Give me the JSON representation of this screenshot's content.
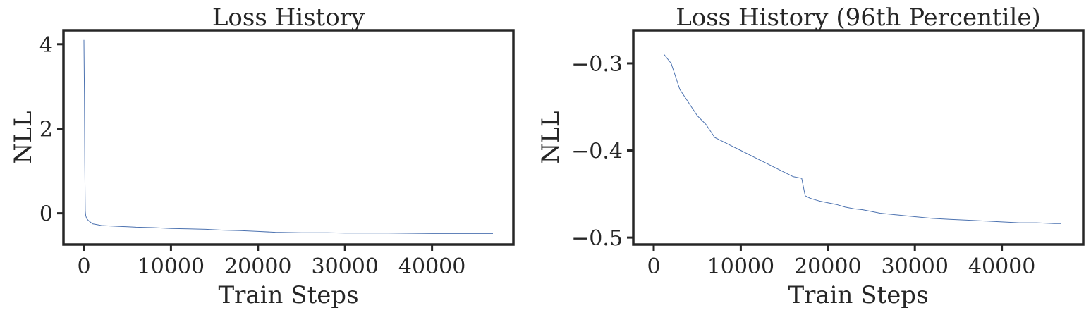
{
  "colors": {
    "series": "#4c72b0",
    "axes": "#262626"
  },
  "chart_data": [
    {
      "type": "line",
      "title": "Loss History",
      "xlabel": "Train Steps",
      "ylabel": "NLL",
      "xlim": [
        -2350,
        49350
      ],
      "ylim": [
        -0.74,
        4.33
      ],
      "xticks": [
        0,
        10000,
        20000,
        30000,
        40000
      ],
      "xtick_labels": [
        "0",
        "10000",
        "20000",
        "30000",
        "40000"
      ],
      "yticks": [
        0,
        2,
        4
      ],
      "ytick_labels": [
        "0",
        "2",
        "4"
      ],
      "grid": false,
      "series": [
        {
          "x": [
            0,
            20,
            60,
            100,
            150,
            200,
            300,
            500,
            800,
            1000,
            1500,
            2000,
            3000,
            4000,
            5000,
            6000,
            8000,
            10000,
            12000,
            14000,
            16000,
            18000,
            20000,
            22000,
            25000,
            28000,
            30000,
            35000,
            40000,
            44000,
            47000
          ],
          "y": [
            4.1,
            3.7,
            2.8,
            1.2,
            0.05,
            -0.05,
            -0.12,
            -0.17,
            -0.22,
            -0.25,
            -0.27,
            -0.29,
            -0.3,
            -0.31,
            -0.32,
            -0.33,
            -0.34,
            -0.36,
            -0.37,
            -0.38,
            -0.4,
            -0.41,
            -0.43,
            -0.45,
            -0.46,
            -0.46,
            -0.47,
            -0.47,
            -0.48,
            -0.48,
            -0.48
          ]
        }
      ]
    },
    {
      "type": "line",
      "title": "Loss History (96th Percentile)",
      "xlabel": "Train Steps",
      "ylabel": "NLL",
      "xlim": [
        -2350,
        49350
      ],
      "ylim": [
        -0.508,
        -0.262
      ],
      "xticks": [
        0,
        10000,
        20000,
        30000,
        40000
      ],
      "xtick_labels": [
        "0",
        "10000",
        "20000",
        "30000",
        "40000"
      ],
      "yticks": [
        -0.3,
        -0.4,
        -0.5
      ],
      "ytick_labels": [
        "−0.3",
        "−0.4",
        "−0.5"
      ],
      "grid": false,
      "series": [
        {
          "x": [
            1200,
            2000,
            3000,
            4000,
            5000,
            6000,
            7000,
            8000,
            9000,
            10000,
            11000,
            12000,
            13000,
            14000,
            15000,
            16000,
            17000,
            17400,
            18000,
            19000,
            20000,
            21000,
            22000,
            23000,
            24000,
            25000,
            26000,
            27000,
            28000,
            30000,
            32000,
            34000,
            36000,
            38000,
            40000,
            42000,
            44000,
            46000,
            46800
          ],
          "y": [
            -0.29,
            -0.3,
            -0.33,
            -0.345,
            -0.36,
            -0.37,
            -0.385,
            -0.39,
            -0.395,
            -0.4,
            -0.405,
            -0.41,
            -0.415,
            -0.42,
            -0.425,
            -0.43,
            -0.432,
            -0.452,
            -0.455,
            -0.458,
            -0.46,
            -0.462,
            -0.465,
            -0.467,
            -0.468,
            -0.47,
            -0.472,
            -0.473,
            -0.474,
            -0.476,
            -0.478,
            -0.479,
            -0.48,
            -0.481,
            -0.482,
            -0.483,
            -0.483,
            -0.484,
            -0.484
          ]
        }
      ]
    }
  ]
}
